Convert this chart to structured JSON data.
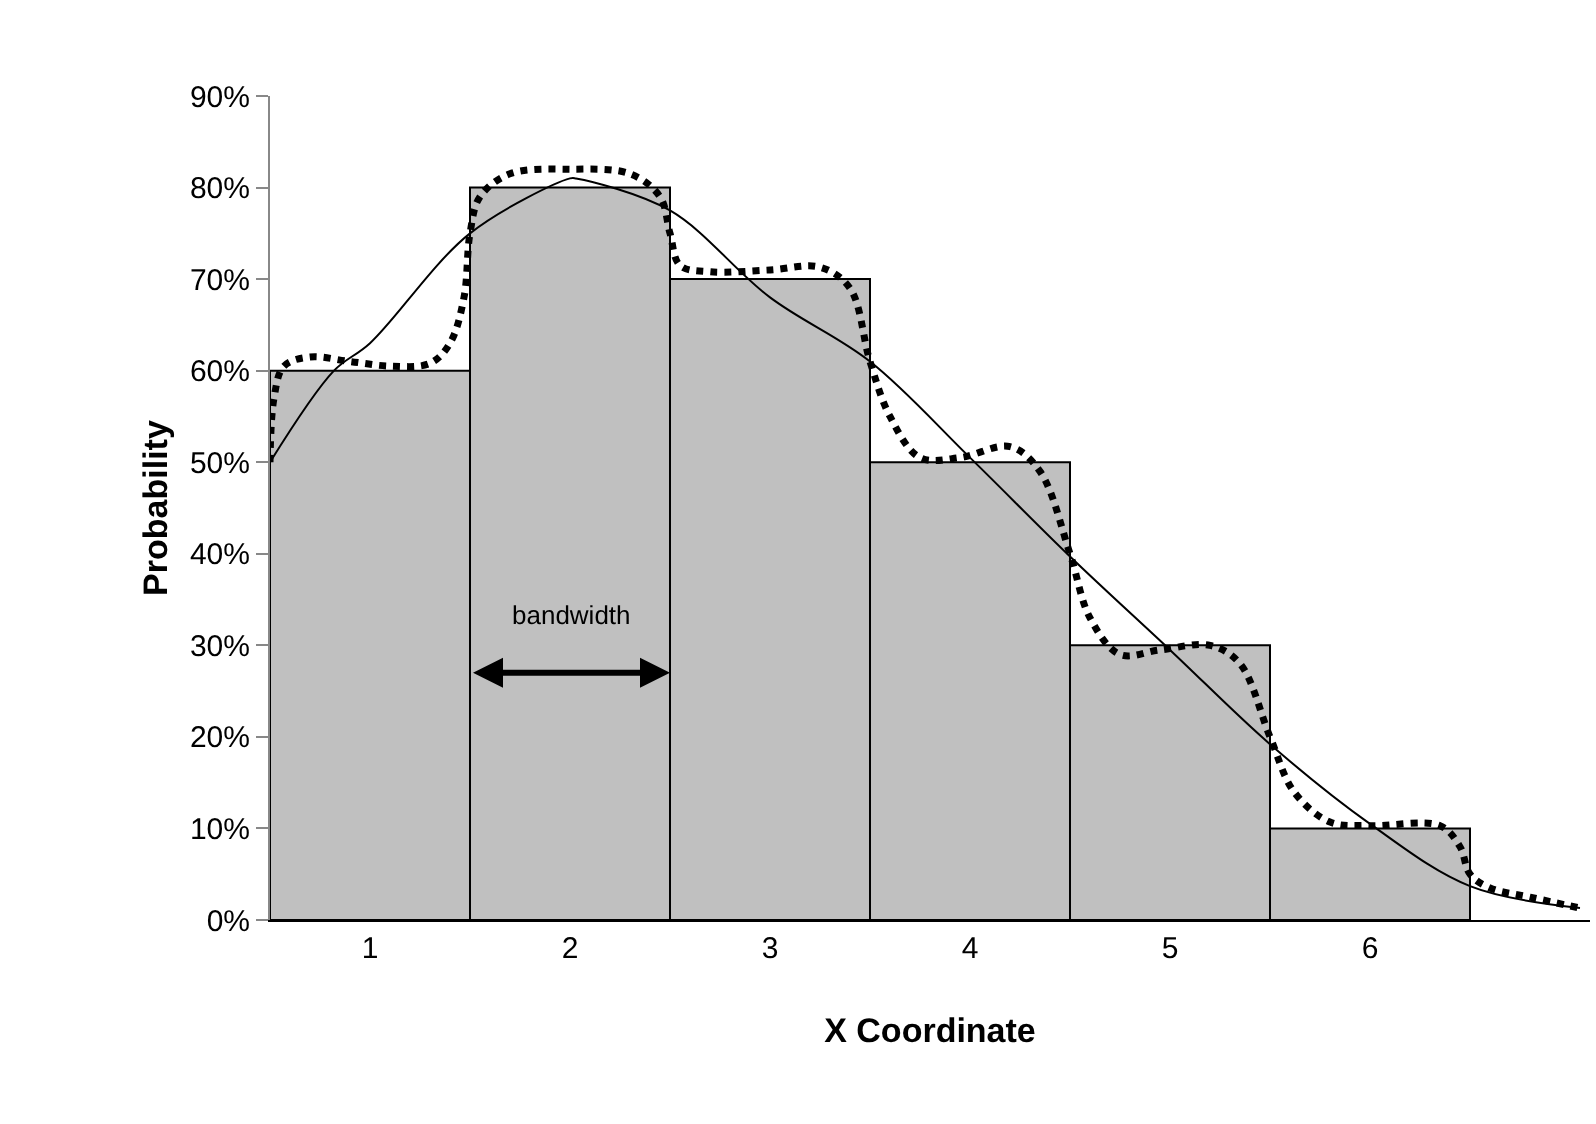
{
  "chart_data": {
    "type": "bar",
    "xlabel": "X Coordinate",
    "ylabel": "Probability",
    "x": [
      1,
      2,
      3,
      4,
      5,
      6
    ],
    "series": [
      {
        "color": "#c0c0c0",
        "values": [
          60,
          80,
          70,
          50,
          30,
          10
        ]
      },
      {
        "type": "line",
        "color": "#000000",
        "line_style": "solid",
        "x": [
          0.5,
          0.82,
          1,
          1.5,
          2,
          2.03,
          2.5,
          3,
          3.5,
          4,
          4.5,
          5,
          5.5,
          6,
          6.5,
          7.05
        ],
        "values": [
          50,
          60,
          63,
          75,
          81,
          81,
          77.5,
          68,
          61,
          50.5,
          39.7,
          29.5,
          19.2,
          10.5,
          3.7,
          1.3
        ]
      },
      {
        "type": "line",
        "color": "#000000",
        "line_style": "dotted",
        "x": [
          0.5,
          0.52,
          0.57,
          0.7,
          0.9,
          1.1,
          1.3,
          1.4,
          1.47,
          1.5,
          1.55,
          1.7,
          2,
          2.3,
          2.45,
          2.5,
          2.55,
          2.7,
          3,
          3.25,
          3.4,
          3.5,
          3.6,
          3.75,
          3.95,
          4.2,
          4.35,
          4.5,
          4.6,
          4.75,
          4.95,
          5.2,
          5.35,
          5.5,
          5.62,
          5.8,
          6,
          6.35,
          6.45,
          6.5,
          6.6,
          6.8,
          7.05
        ],
        "values": [
          50,
          57,
          60.5,
          61.5,
          61,
          60.5,
          60.8,
          63,
          68,
          75,
          79,
          81.5,
          82,
          81.5,
          79,
          75,
          71.5,
          70.8,
          71,
          71.3,
          69,
          61,
          55,
          50.5,
          50.5,
          51.7,
          49,
          40,
          33,
          29,
          29.5,
          30,
          28,
          20,
          14,
          10.7,
          10.3,
          10.3,
          8,
          5,
          3.5,
          2.5,
          1.3
        ]
      }
    ],
    "annotations": [
      "bandwidth"
    ],
    "xlim": [
      0.5,
      7.1
    ],
    "xticks": [
      1,
      2,
      3,
      4,
      5,
      6
    ],
    "ylim": [
      0,
      90
    ],
    "yticks": [
      {
        "value": 0,
        "label": "0%"
      },
      {
        "value": 10,
        "label": "10%"
      },
      {
        "value": 20,
        "label": "20%"
      },
      {
        "value": 30,
        "label": "30%"
      },
      {
        "value": 40,
        "label": "40%"
      },
      {
        "value": 50,
        "label": "50%"
      },
      {
        "value": 60,
        "label": "60%"
      },
      {
        "value": 70,
        "label": "70%"
      },
      {
        "value": 80,
        "label": "80%"
      },
      {
        "value": 90,
        "label": "90%"
      }
    ],
    "grid": false,
    "legend": false
  }
}
